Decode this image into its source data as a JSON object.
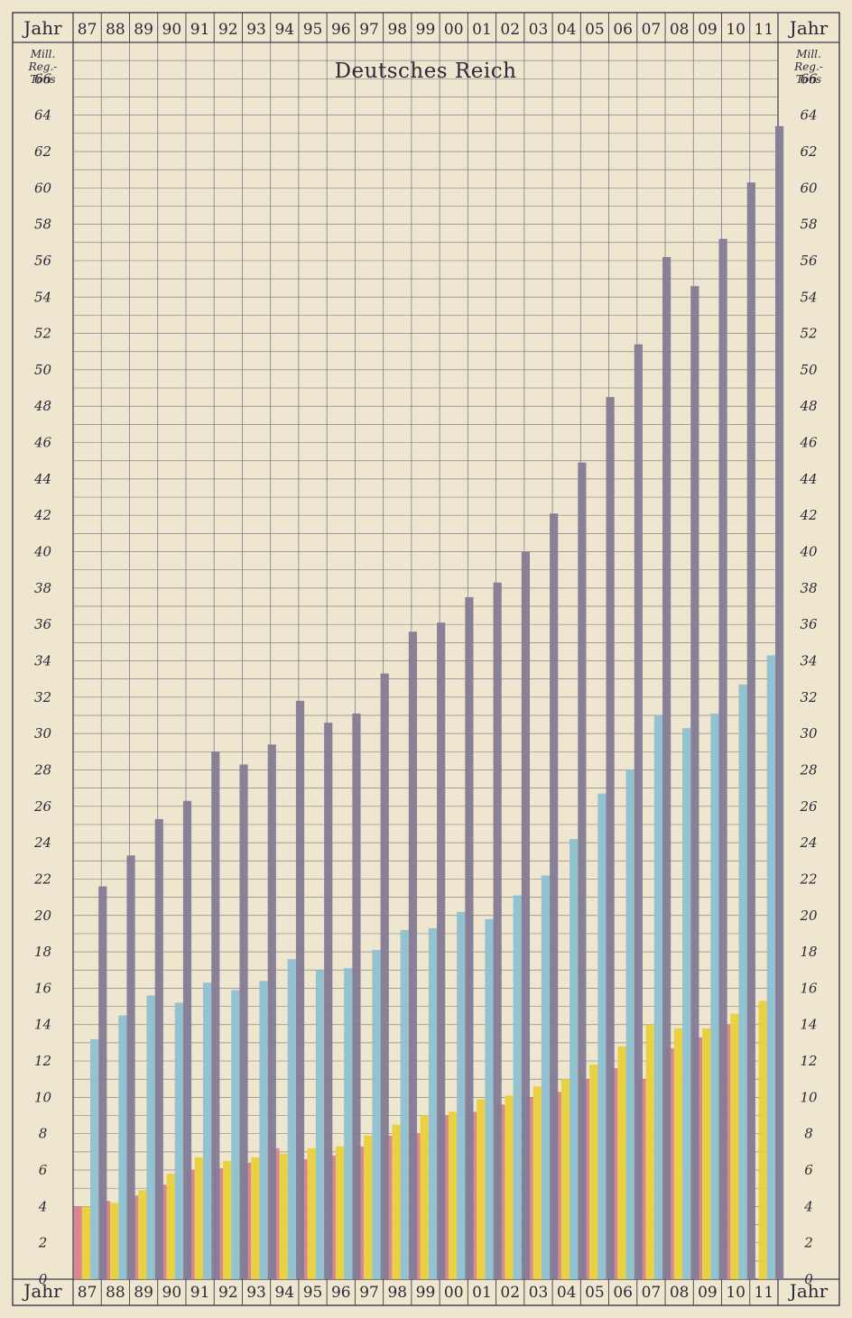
{
  "chart_data": {
    "type": "bar",
    "title": "Deutsches Reich",
    "axis_header_label": "Jahr",
    "unit_label_lines": [
      "Mill.",
      "Reg.-",
      "Tons"
    ],
    "categories": [
      "87",
      "88",
      "89",
      "90",
      "91",
      "92",
      "93",
      "94",
      "95",
      "96",
      "97",
      "98",
      "99",
      "00",
      "01",
      "02",
      "03",
      "04",
      "05",
      "06",
      "07",
      "08",
      "09",
      "10",
      "11"
    ],
    "ylim": [
      0,
      68
    ],
    "y_ticks": [
      0,
      2,
      4,
      6,
      8,
      10,
      12,
      14,
      16,
      18,
      20,
      22,
      24,
      26,
      28,
      30,
      32,
      34,
      36,
      38,
      40,
      42,
      44,
      46,
      48,
      50,
      52,
      54,
      56,
      58,
      60,
      62,
      64,
      66
    ],
    "grid": true,
    "series": [
      {
        "color": "#d9848d",
        "values": [
          4.0,
          4.3,
          4.6,
          5.2,
          6.0,
          6.1,
          6.4,
          7.2,
          6.6,
          6.8,
          7.3,
          7.9,
          8.0,
          9.0,
          9.2,
          9.6,
          10.0,
          10.3,
          11.0,
          11.6,
          11.0,
          12.7,
          13.3,
          14.0,
          null
        ]
      },
      {
        "color": "#e9cf3c",
        "values": [
          4.0,
          4.2,
          4.9,
          5.8,
          6.7,
          6.5,
          6.7,
          6.9,
          7.2,
          7.3,
          7.9,
          8.5,
          9.0,
          9.2,
          9.9,
          10.1,
          10.6,
          11.0,
          11.8,
          12.8,
          14.0,
          13.8,
          13.8,
          14.6,
          15.3
        ]
      },
      {
        "color": "#8fc0cf",
        "values": [
          13.2,
          14.5,
          15.6,
          15.2,
          16.3,
          15.9,
          16.4,
          17.6,
          17.0,
          17.1,
          18.1,
          19.2,
          19.3,
          20.2,
          19.8,
          21.1,
          22.2,
          24.2,
          26.7,
          28.0,
          31.0,
          30.3,
          31.1,
          32.7,
          34.3
        ]
      },
      {
        "color": "#857d96",
        "values": [
          21.6,
          23.3,
          25.3,
          26.3,
          29.0,
          28.3,
          29.4,
          31.8,
          30.6,
          31.1,
          33.3,
          35.6,
          36.1,
          37.5,
          38.3,
          40.0,
          42.1,
          44.9,
          48.5,
          51.4,
          56.2,
          54.6,
          57.2,
          60.3,
          63.4
        ]
      }
    ]
  }
}
